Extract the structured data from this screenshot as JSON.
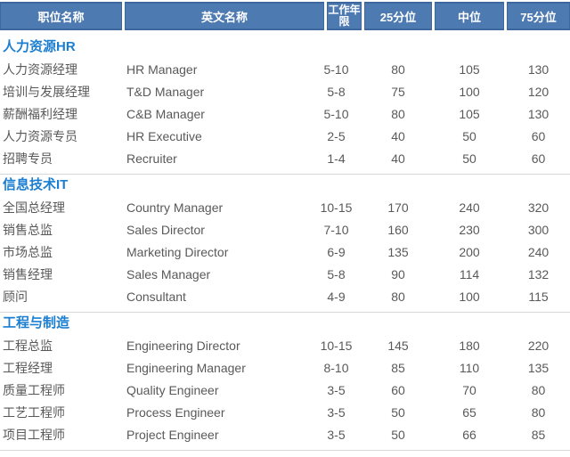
{
  "table": {
    "columns": {
      "position_cn": "职位名称",
      "position_en": "英文名称",
      "years": "工作年限",
      "p25": "25分位",
      "median": "中位",
      "p75": "75分位"
    },
    "sections": [
      {
        "title": "人力资源HR",
        "rows": [
          {
            "cn": "人力资源经理",
            "en": "HR Manager",
            "years": "5-10",
            "p25": "80",
            "median": "105",
            "p75": "130"
          },
          {
            "cn": "培训与发展经理",
            "en": "T&D Manager",
            "years": "5-8",
            "p25": "75",
            "median": "100",
            "p75": "120"
          },
          {
            "cn": "薪酬福利经理",
            "en": "C&B Manager",
            "years": "5-10",
            "p25": "80",
            "median": "105",
            "p75": "130"
          },
          {
            "cn": "人力资源专员",
            "en": "HR Executive",
            "years": "2-5",
            "p25": "40",
            "median": "50",
            "p75": "60"
          },
          {
            "cn": "招聘专员",
            "en": "Recruiter",
            "years": "1-4",
            "p25": "40",
            "median": "50",
            "p75": "60"
          }
        ]
      },
      {
        "title": "信息技术IT",
        "rows": [
          {
            "cn": "全国总经理",
            "en": "Country Manager",
            "years": "10-15",
            "p25": "170",
            "median": "240",
            "p75": "320"
          },
          {
            "cn": "销售总监",
            "en": "Sales Director",
            "years": "7-10",
            "p25": "160",
            "median": "230",
            "p75": "300"
          },
          {
            "cn": "市场总监",
            "en": "Marketing Director",
            "years": "6-9",
            "p25": "135",
            "median": "200",
            "p75": "240"
          },
          {
            "cn": "销售经理",
            "en": "Sales Manager",
            "years": "5-8",
            "p25": "90",
            "median": "114",
            "p75": "132"
          },
          {
            "cn": "顾问",
            "en": "Consultant",
            "years": "4-9",
            "p25": "80",
            "median": "100",
            "p75": "115"
          }
        ]
      },
      {
        "title": "工程与制造",
        "rows": [
          {
            "cn": "工程总监",
            "en": "Engineering Director",
            "years": "10-15",
            "p25": "145",
            "median": "180",
            "p75": "220"
          },
          {
            "cn": "工程经理",
            "en": "Engineering Manager",
            "years": "8-10",
            "p25": "85",
            "median": "110",
            "p75": "135"
          },
          {
            "cn": "质量工程师",
            "en": "Quality Engineer",
            "years": "3-5",
            "p25": "60",
            "median": "70",
            "p75": "80"
          },
          {
            "cn": "工艺工程师",
            "en": "Process Engineer",
            "years": "3-5",
            "p25": "50",
            "median": "65",
            "p75": "80"
          },
          {
            "cn": "项目工程师",
            "en": "Project Engineer",
            "years": "3-5",
            "p25": "50",
            "median": "66",
            "p75": "85"
          }
        ]
      }
    ]
  },
  "colors": {
    "header_bg": "#4e7ab2",
    "header_border": "#3d689e",
    "section_title": "#1b7ed0",
    "body_text": "#595959",
    "divider": "#d8d8d8"
  }
}
